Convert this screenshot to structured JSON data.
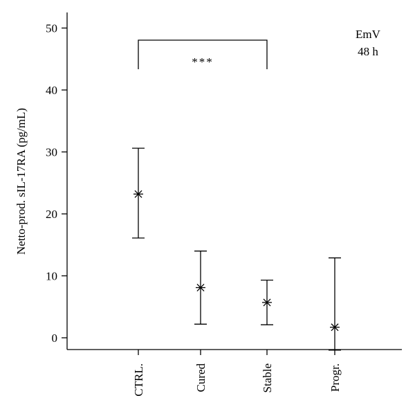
{
  "chart_data": {
    "type": "scatter",
    "ylabel": "Netto-prod. sIL-17RA (pg/mL)",
    "annotation_lines": [
      "EmV",
      "48 h"
    ],
    "significance": {
      "from": "CTRL.",
      "to": "Stable",
      "label": "***"
    },
    "ylim": [
      -2,
      52
    ],
    "yticks": [
      0,
      10,
      20,
      30,
      40,
      50
    ],
    "categories": [
      "CTRL.",
      "Cured",
      "Stable",
      "Progr."
    ],
    "series": [
      {
        "values": [
          23.2,
          8.1,
          5.7,
          1.7
        ],
        "lower": [
          16.1,
          2.2,
          2.1,
          -2.0
        ],
        "upper": [
          30.6,
          14.0,
          9.3,
          12.9
        ]
      }
    ],
    "grid": false,
    "legend": "none"
  }
}
